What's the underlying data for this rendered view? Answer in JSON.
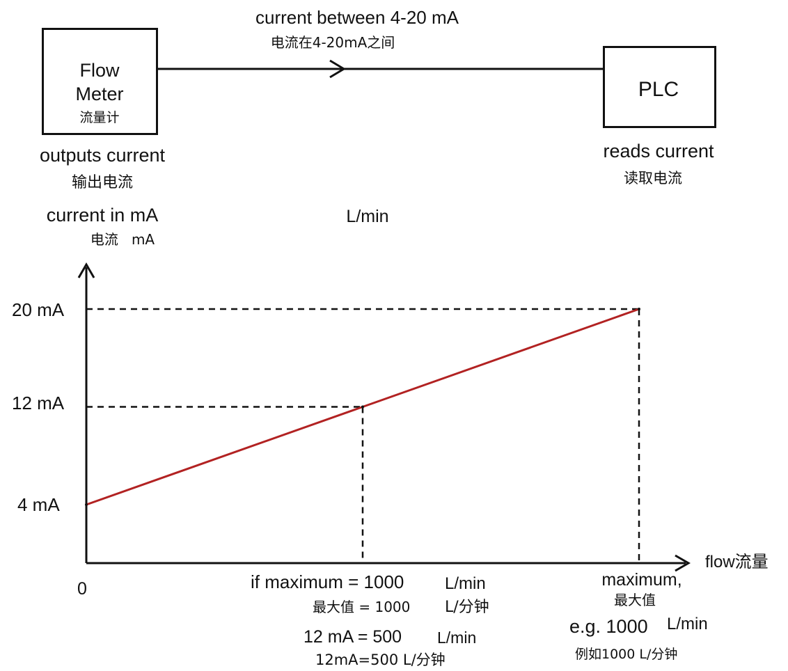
{
  "flow_meter": {
    "label_line1": "Flow",
    "label_line2": "Meter",
    "label_cn": "流量计",
    "caption": "outputs current",
    "caption_cn": "输出电流"
  },
  "plc": {
    "label": "PLC",
    "caption": "reads current",
    "caption_cn": "读取电流"
  },
  "signal": {
    "label": "current between 4-20 mA",
    "label_cn": "电流在4-20mA之间"
  },
  "axis": {
    "y_title": "current in mA",
    "y_title_cn": "电流   mA",
    "floating_unit": "L/min",
    "x_title": "flow流量",
    "origin": "0",
    "y_ticks": [
      "20 mA",
      "12 mA",
      "4 mA"
    ]
  },
  "annotations": {
    "mid_line1_a": "if maximum = 1000",
    "mid_line1_b": "L/min",
    "mid_line2_a": "最大值 = 1000",
    "mid_line2_b": "L/分钟",
    "mid_line3_a": "12 mA = 500",
    "mid_line3_b": "L/min",
    "mid_line4": "12mA=500 L/分钟",
    "max_line1": "maximum,",
    "max_line2": "最大值",
    "max_line3_a": "e.g. 1000",
    "max_line3_b": "L/min",
    "max_line4": "例如1000 L/分钟"
  },
  "chart_data": {
    "type": "line",
    "x": [
      0,
      500,
      1000
    ],
    "series": [
      {
        "values": [
          4,
          12,
          20
        ],
        "color": "#b22222"
      }
    ],
    "xlabel": "flow流量",
    "ylabel": "current in mA",
    "xlim": [
      0,
      1000
    ],
    "ylim": [
      0,
      20
    ],
    "y_tick_values": [
      4,
      12,
      20
    ],
    "guide_lines": "dashed",
    "grid": false
  },
  "colors": {
    "line": "#b22222",
    "ink": "#111111"
  }
}
